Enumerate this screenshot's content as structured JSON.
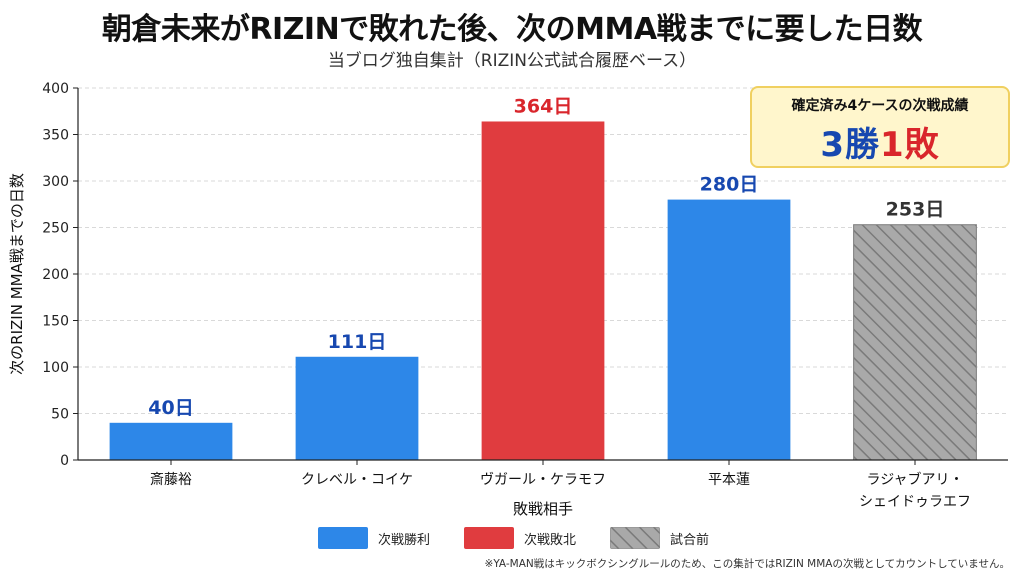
{
  "title": "朝倉未来がRIZINで敗れた後、次のMMA戦までに要した日数",
  "subtitle": "当ブログ独自集計（RIZIN公式試合履歴ベース）",
  "colors": {
    "win": "#2d87e8",
    "loss": "#e03c3f",
    "pending": "#a9a9a9",
    "win_label": "#1748b0",
    "loss_label": "#d9262c",
    "pending_label": "#333333"
  },
  "summary": {
    "title": "確定済み4ケースの次戦成績",
    "wins": "3",
    "wins_unit": "勝",
    "losses": "1",
    "losses_unit": "敗"
  },
  "legend": [
    {
      "label": "次戦勝利",
      "status": "win"
    },
    {
      "label": "次戦敗北",
      "status": "loss"
    },
    {
      "label": "試合前",
      "status": "pending"
    }
  ],
  "footnote": "※YA-MAN戦はキックボクシングルールのため、この集計ではRIZIN MMAの次戦としてカウントしていません。",
  "chart_data": {
    "type": "bar",
    "xlabel": "敗戦相手",
    "ylabel": "次のRIZIN MMA戦までの日数",
    "ylim": [
      0,
      400
    ],
    "yticks": [
      0,
      50,
      100,
      150,
      200,
      250,
      300,
      350,
      400
    ],
    "grid": true,
    "legend_position": "bottom",
    "categories": [
      [
        "斎藤裕"
      ],
      [
        "クレベル・コイケ"
      ],
      [
        "ヴガール・ケラモフ"
      ],
      [
        "平本蓮"
      ],
      [
        "ラジャブアリ・",
        "シェイドゥラエフ"
      ]
    ],
    "values": [
      40,
      111,
      364,
      280,
      253
    ],
    "value_labels": [
      "40日",
      "111日",
      "364日",
      "280日",
      "253日"
    ],
    "status": [
      "win",
      "win",
      "loss",
      "win",
      "pending"
    ]
  }
}
